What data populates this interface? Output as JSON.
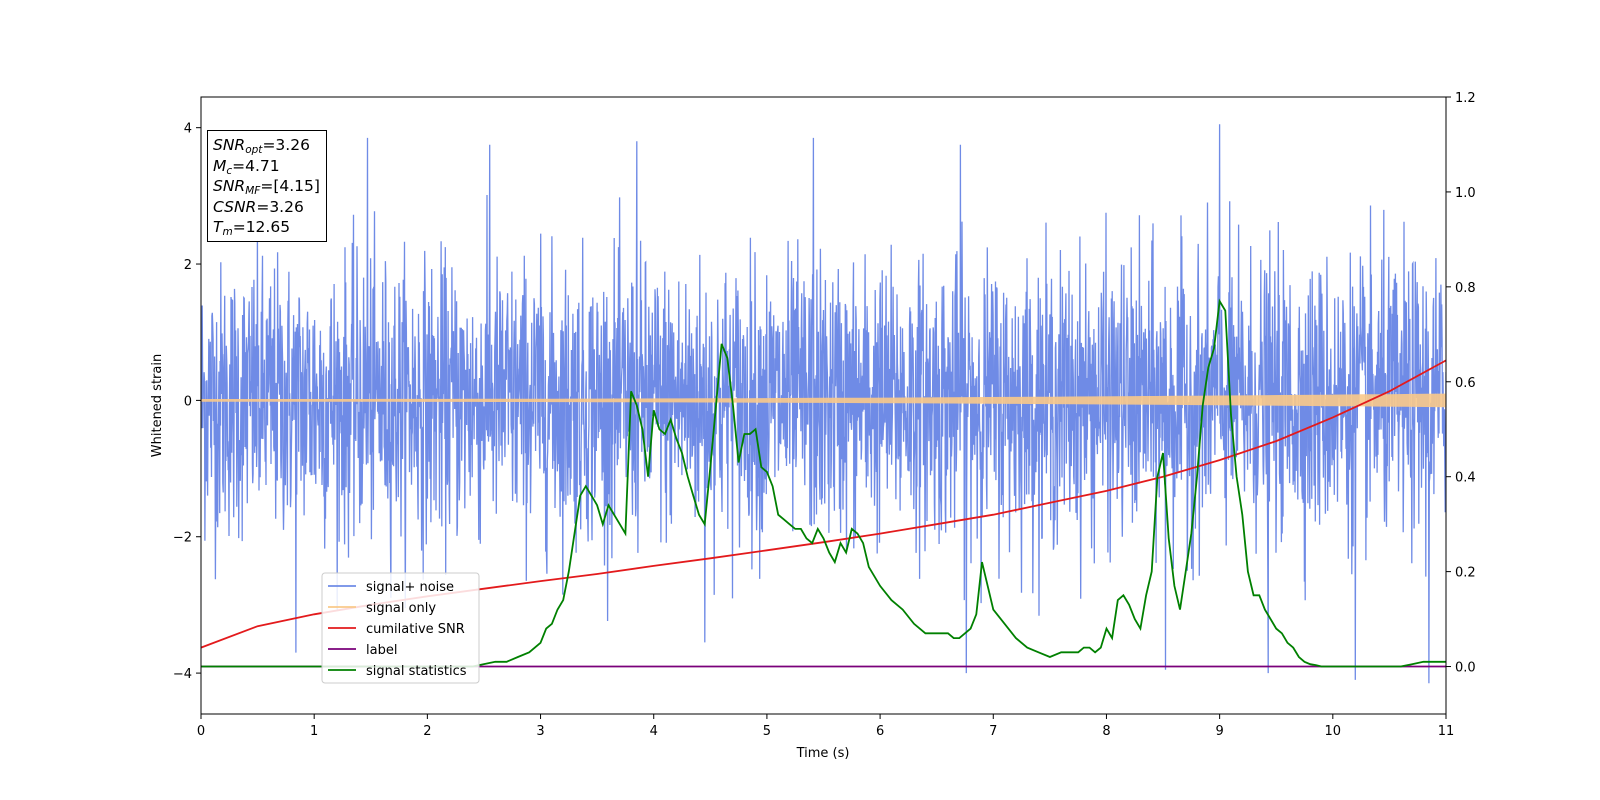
{
  "chart_data": {
    "type": "line",
    "title": "",
    "xlabel": "Time (s)",
    "ylabel": "Whitened strain",
    "xlim": [
      0,
      11
    ],
    "ylim": [
      -4.6,
      4.45
    ],
    "y2lim": [
      -0.1,
      1.2
    ],
    "grid": false,
    "legend_placement": "lower-left",
    "x_ticks": [
      0,
      1,
      2,
      3,
      4,
      5,
      6,
      7,
      8,
      9,
      10,
      11
    ],
    "y_ticks": [
      -4,
      -2,
      0,
      2,
      4
    ],
    "y2_ticks": [
      "0.0",
      "0.2",
      "0.4",
      "0.6",
      "0.8",
      "1.0",
      "1.2"
    ],
    "series": [
      {
        "name": "signal+ noise",
        "color": "#6f8be6",
        "axis": "left",
        "std_approx": 1.0,
        "peak_values": [
          {
            "x": 1.47,
            "y": 3.85
          },
          {
            "x": 2.55,
            "y": 3.75
          },
          {
            "x": 3.85,
            "y": 3.8
          },
          {
            "x": 5.41,
            "y": 3.85
          },
          {
            "x": 6.71,
            "y": 3.75
          },
          {
            "x": 9.0,
            "y": 4.05
          },
          {
            "x": 0.84,
            "y": -3.7
          },
          {
            "x": 4.45,
            "y": -3.55
          },
          {
            "x": 6.76,
            "y": -4.0
          },
          {
            "x": 8.52,
            "y": -3.95
          },
          {
            "x": 9.43,
            "y": -4.0
          },
          {
            "x": 10.2,
            "y": -4.1
          },
          {
            "x": 10.85,
            "y": -4.15
          }
        ]
      },
      {
        "name": "signal only",
        "color": "#f9c98a",
        "axis": "left",
        "amplitude_start": 0.02,
        "amplitude_end": 0.1
      },
      {
        "name": "cumilative SNR",
        "color": "#e31a1c",
        "axis": "right",
        "x": [
          0,
          0.5,
          1,
          1.5,
          2,
          2.5,
          3,
          3.5,
          4,
          4.5,
          5,
          5.5,
          6,
          6.5,
          7,
          7.5,
          8,
          8.5,
          9,
          9.5,
          10,
          10.5,
          11
        ],
        "values": [
          0.04,
          0.085,
          0.11,
          0.13,
          0.148,
          0.164,
          0.18,
          0.195,
          0.212,
          0.228,
          0.245,
          0.262,
          0.28,
          0.3,
          0.32,
          0.345,
          0.37,
          0.4,
          0.435,
          0.475,
          0.525,
          0.58,
          0.645
        ]
      },
      {
        "name": "label",
        "color": "#7a007a",
        "axis": "right",
        "x": [
          0,
          11
        ],
        "values": [
          0.0,
          0.0
        ]
      },
      {
        "name": "signal statistics",
        "color": "#008000",
        "axis": "right",
        "x": [
          0,
          0.5,
          1,
          1.5,
          2,
          2.4,
          2.6,
          2.7,
          2.8,
          2.9,
          3.0,
          3.05,
          3.1,
          3.15,
          3.2,
          3.25,
          3.3,
          3.35,
          3.4,
          3.45,
          3.5,
          3.55,
          3.6,
          3.65,
          3.7,
          3.75,
          3.8,
          3.85,
          3.9,
          3.95,
          4.0,
          4.05,
          4.1,
          4.15,
          4.2,
          4.25,
          4.3,
          4.35,
          4.4,
          4.45,
          4.5,
          4.55,
          4.6,
          4.65,
          4.7,
          4.75,
          4.8,
          4.85,
          4.9,
          4.95,
          5.0,
          5.05,
          5.1,
          5.15,
          5.2,
          5.25,
          5.3,
          5.35,
          5.4,
          5.45,
          5.5,
          5.55,
          5.6,
          5.65,
          5.7,
          5.75,
          5.8,
          5.85,
          5.9,
          6.0,
          6.1,
          6.2,
          6.3,
          6.4,
          6.5,
          6.6,
          6.65,
          6.7,
          6.75,
          6.8,
          6.85,
          6.9,
          7.0,
          7.1,
          7.2,
          7.3,
          7.4,
          7.5,
          7.6,
          7.7,
          7.75,
          7.8,
          7.85,
          7.9,
          7.95,
          8.0,
          8.05,
          8.1,
          8.15,
          8.2,
          8.25,
          8.3,
          8.35,
          8.4,
          8.45,
          8.5,
          8.55,
          8.6,
          8.65,
          8.7,
          8.75,
          8.8,
          8.85,
          8.9,
          8.95,
          9.0,
          9.05,
          9.1,
          9.15,
          9.2,
          9.25,
          9.3,
          9.35,
          9.4,
          9.45,
          9.5,
          9.55,
          9.6,
          9.65,
          9.7,
          9.75,
          9.8,
          9.85,
          9.9,
          10.0,
          10.1,
          10.2,
          10.3,
          10.4,
          10.5,
          10.6,
          10.7,
          10.8,
          10.9,
          11.0
        ],
        "values": [
          0.0,
          0.0,
          0.0,
          0.0,
          0.0,
          0.0,
          0.01,
          0.01,
          0.02,
          0.03,
          0.05,
          0.08,
          0.09,
          0.12,
          0.14,
          0.2,
          0.28,
          0.36,
          0.38,
          0.36,
          0.34,
          0.3,
          0.34,
          0.32,
          0.3,
          0.28,
          0.58,
          0.55,
          0.5,
          0.4,
          0.54,
          0.5,
          0.49,
          0.52,
          0.48,
          0.45,
          0.4,
          0.36,
          0.32,
          0.3,
          0.42,
          0.55,
          0.68,
          0.65,
          0.55,
          0.43,
          0.49,
          0.49,
          0.5,
          0.42,
          0.41,
          0.38,
          0.32,
          0.31,
          0.3,
          0.29,
          0.29,
          0.27,
          0.26,
          0.29,
          0.27,
          0.24,
          0.22,
          0.26,
          0.24,
          0.29,
          0.28,
          0.26,
          0.21,
          0.17,
          0.14,
          0.12,
          0.09,
          0.07,
          0.07,
          0.07,
          0.06,
          0.06,
          0.07,
          0.08,
          0.11,
          0.22,
          0.12,
          0.09,
          0.06,
          0.04,
          0.03,
          0.02,
          0.03,
          0.03,
          0.03,
          0.04,
          0.04,
          0.03,
          0.04,
          0.08,
          0.06,
          0.14,
          0.15,
          0.13,
          0.1,
          0.08,
          0.15,
          0.2,
          0.4,
          0.45,
          0.27,
          0.17,
          0.12,
          0.2,
          0.28,
          0.4,
          0.55,
          0.63,
          0.67,
          0.77,
          0.75,
          0.53,
          0.4,
          0.32,
          0.2,
          0.15,
          0.15,
          0.12,
          0.1,
          0.08,
          0.07,
          0.05,
          0.04,
          0.02,
          0.01,
          0.005,
          0.003,
          0.0,
          0.0,
          0.0,
          0.0,
          0.0,
          0.0,
          0.0,
          0.0,
          0.005,
          0.01,
          0.01,
          0.01
        ]
      }
    ],
    "annotations": [
      {
        "label": "SNR",
        "sub": "opt",
        "value": "=3.26"
      },
      {
        "label": "M",
        "sub": "c",
        "value": "=4.71"
      },
      {
        "label": "SNR",
        "sub": "MF",
        "value": "=[4.15]"
      },
      {
        "label": "CSNR",
        "sub": "",
        "value": "=3.26"
      },
      {
        "label": "T",
        "sub": "m",
        "value": "=12.65"
      }
    ]
  }
}
